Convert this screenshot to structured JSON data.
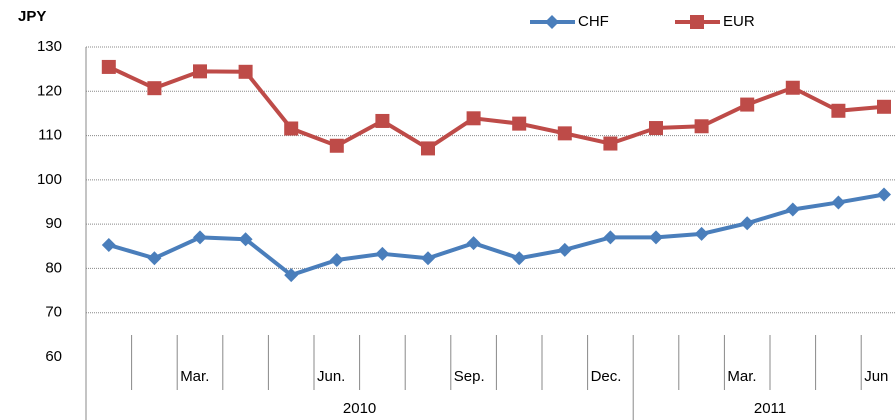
{
  "chart_data": {
    "type": "line",
    "y_label": "JPY",
    "categories": [
      null,
      null,
      "Mar.",
      null,
      null,
      "Jun.",
      null,
      null,
      "Sep.",
      null,
      null,
      "Dec.",
      null,
      null,
      "Mar.",
      null,
      null,
      "Jun"
    ],
    "category_groups": [
      "2010",
      "2011"
    ],
    "series": [
      {
        "name": "CHF",
        "color": "#4a7ebb",
        "marker": "diamond",
        "values": [
          85.3,
          82.3,
          87,
          86.6,
          78.5,
          81.9,
          83.3,
          82.3,
          85.7,
          82.3,
          84.2,
          87,
          87,
          87.8,
          90.2,
          93.3,
          94.9,
          96.7
        ]
      },
      {
        "name": "EUR",
        "color": "#be4b48",
        "marker": "square",
        "values": [
          125.5,
          120.7,
          124.5,
          124.4,
          111.6,
          107.7,
          113.3,
          107.1,
          113.9,
          112.7,
          110.5,
          108.2,
          111.7,
          112.1,
          117,
          120.8,
          115.6,
          116.5
        ]
      }
    ],
    "ylim": [
      60,
      130
    ],
    "yticks": [
      60,
      70,
      80,
      90,
      100,
      110,
      120,
      130
    ],
    "grid": true
  }
}
